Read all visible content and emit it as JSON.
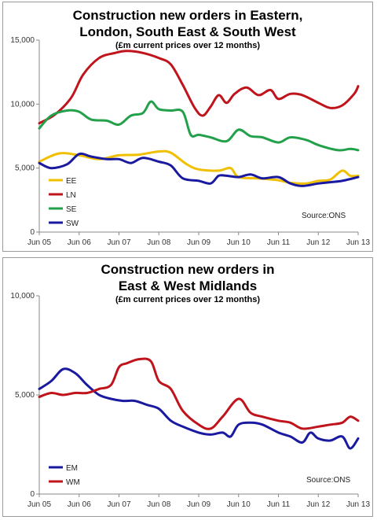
{
  "charts": [
    {
      "title_line1": "Construction new orders in Eastern,",
      "title_line2": "London, South East & South West",
      "subtitle": "(£m current prices over 12 months)",
      "source": "Source:ONS"
    },
    {
      "title_line1": "Construction new orders in",
      "title_line2": "East & West Midlands",
      "subtitle": "(£m current prices over 12 months)",
      "source": "Source:ONS"
    }
  ],
  "chart_data": [
    {
      "type": "line",
      "title": "Construction new orders in Eastern, London, South East & South West",
      "subtitle": "(£m current prices over 12 months)",
      "x_labels": [
        "Jun 05",
        "Jun 06",
        "Jun 07",
        "Jun 08",
        "Jun 09",
        "Jun 10",
        "Jun 11",
        "Jun 12",
        "Jun 13"
      ],
      "xlim": [
        2005.0,
        2013.0
      ],
      "ylim": [
        0,
        15000
      ],
      "y_ticks": [
        0,
        5000,
        10000,
        15000
      ],
      "y_tick_labels": [
        "0",
        "5,000",
        "10,000",
        "15,000"
      ],
      "grid": false,
      "legend": "bottom-left",
      "series": [
        {
          "name": "EE",
          "color": "#f0c000",
          "x": [
            2005.0,
            2005.5,
            2006.0,
            2006.5,
            2007.0,
            2007.5,
            2008.0,
            2008.3,
            2008.7,
            2009.0,
            2009.5,
            2009.8,
            2010.0,
            2010.5,
            2011.0,
            2011.3,
            2011.7,
            2012.0,
            2012.3,
            2012.6,
            2012.8,
            2013.0
          ],
          "y": [
            5500,
            6150,
            6000,
            5700,
            6000,
            6050,
            6300,
            6200,
            5300,
            4900,
            4800,
            5000,
            4300,
            4200,
            4050,
            3850,
            3800,
            4000,
            4100,
            4800,
            4400,
            4400
          ]
        },
        {
          "name": "LN",
          "color": "#c0141c",
          "x": [
            2005.0,
            2005.4,
            2005.8,
            2006.1,
            2006.5,
            2006.9,
            2007.2,
            2007.6,
            2008.0,
            2008.3,
            2008.6,
            2008.9,
            2009.1,
            2009.3,
            2009.5,
            2009.7,
            2009.9,
            2010.2,
            2010.5,
            2010.8,
            2011.0,
            2011.3,
            2011.6,
            2012.0,
            2012.3,
            2012.6,
            2012.9,
            2013.0
          ],
          "y": [
            8500,
            9200,
            10500,
            12300,
            13600,
            14000,
            14150,
            14000,
            13600,
            13100,
            11500,
            9700,
            9100,
            9800,
            10700,
            10100,
            10800,
            11300,
            10700,
            11100,
            10400,
            10800,
            10700,
            10100,
            9700,
            9900,
            10800,
            11400
          ]
        },
        {
          "name": "SE",
          "color": "#22a04a",
          "x": [
            2005.0,
            2005.3,
            2005.7,
            2006.0,
            2006.3,
            2006.7,
            2007.0,
            2007.3,
            2007.6,
            2007.8,
            2008.0,
            2008.3,
            2008.6,
            2008.8,
            2009.0,
            2009.3,
            2009.7,
            2010.0,
            2010.3,
            2010.6,
            2011.0,
            2011.3,
            2011.7,
            2012.0,
            2012.5,
            2012.8,
            2013.0
          ],
          "y": [
            8100,
            9100,
            9500,
            9400,
            8800,
            8700,
            8400,
            9100,
            9300,
            10200,
            9600,
            9500,
            9400,
            7600,
            7600,
            7400,
            7100,
            8000,
            7500,
            7400,
            7000,
            7400,
            7200,
            6800,
            6400,
            6500,
            6400
          ]
        },
        {
          "name": "SW",
          "color": "#1a1aa0",
          "x": [
            2005.0,
            2005.3,
            2005.7,
            2006.0,
            2006.3,
            2006.7,
            2007.0,
            2007.3,
            2007.6,
            2008.0,
            2008.3,
            2008.6,
            2009.0,
            2009.3,
            2009.5,
            2009.7,
            2010.0,
            2010.3,
            2010.6,
            2011.0,
            2011.3,
            2011.6,
            2012.0,
            2012.3,
            2012.6,
            2013.0
          ],
          "y": [
            5400,
            5000,
            5300,
            6100,
            5900,
            5700,
            5700,
            5400,
            5800,
            5500,
            5200,
            4200,
            4000,
            3800,
            4400,
            4400,
            4300,
            4500,
            4200,
            4300,
            3800,
            3600,
            3800,
            3900,
            4000,
            4300
          ]
        }
      ],
      "source": "Source:ONS"
    },
    {
      "type": "line",
      "title": "Construction new orders in East & West Midlands",
      "subtitle": "(£m current prices over 12 months)",
      "x_labels": [
        "Jun 05",
        "Jun 06",
        "Jun 07",
        "Jun 08",
        "Jun 09",
        "Jun 10",
        "Jun 11",
        "Jun 12",
        "Jun 13"
      ],
      "xlim": [
        2005.0,
        2013.0
      ],
      "ylim": [
        0,
        10000
      ],
      "y_ticks": [
        0,
        5000,
        10000
      ],
      "y_tick_labels": [
        "0",
        "5,000",
        "10,000"
      ],
      "grid": false,
      "legend": "bottom-left",
      "series": [
        {
          "name": "EM",
          "color": "#1a1aa0",
          "x": [
            2005.0,
            2005.3,
            2005.6,
            2005.9,
            2006.2,
            2006.5,
            2006.8,
            2007.1,
            2007.4,
            2007.7,
            2008.0,
            2008.3,
            2008.6,
            2009.0,
            2009.3,
            2009.6,
            2009.8,
            2010.0,
            2010.3,
            2010.6,
            2011.0,
            2011.3,
            2011.6,
            2011.8,
            2012.0,
            2012.3,
            2012.6,
            2012.8,
            2013.0
          ],
          "y": [
            5300,
            5700,
            6300,
            6100,
            5500,
            5000,
            4800,
            4700,
            4700,
            4500,
            4300,
            3700,
            3400,
            3100,
            3000,
            3100,
            2900,
            3500,
            3600,
            3500,
            3100,
            2900,
            2600,
            3100,
            2800,
            2700,
            2900,
            2300,
            2800
          ]
        },
        {
          "name": "WM",
          "color": "#c0141c",
          "x": [
            2005.0,
            2005.3,
            2005.6,
            2005.9,
            2006.2,
            2006.5,
            2006.8,
            2007.0,
            2007.2,
            2007.5,
            2007.8,
            2008.0,
            2008.3,
            2008.6,
            2009.0,
            2009.3,
            2009.6,
            2010.0,
            2010.3,
            2010.6,
            2011.0,
            2011.3,
            2011.6,
            2012.0,
            2012.3,
            2012.6,
            2012.8,
            2013.0
          ],
          "y": [
            4900,
            5100,
            5000,
            5100,
            5100,
            5300,
            5500,
            6400,
            6600,
            6800,
            6700,
            5700,
            5300,
            4200,
            3500,
            3300,
            3900,
            4800,
            4100,
            3900,
            3700,
            3600,
            3300,
            3400,
            3500,
            3600,
            3900,
            3700
          ]
        }
      ],
      "source": "Source:ONS"
    }
  ]
}
